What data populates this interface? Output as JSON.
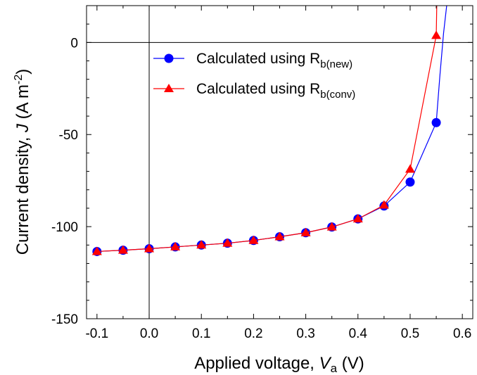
{
  "chart_data": {
    "type": "line",
    "title": "",
    "xlabel": {
      "prefix": "Applied voltage,  ",
      "symbol": "V",
      "subscript": "a",
      "suffix": " (V)"
    },
    "ylabel": {
      "prefix": "Current density,  ",
      "symbol": "J",
      "suffix_start": "  (A m",
      "superscript": "-2",
      "suffix_end": ")"
    },
    "xlim": [
      -0.12,
      0.62
    ],
    "ylim": [
      -150,
      20
    ],
    "x_ticks": [
      -0.1,
      0.0,
      0.1,
      0.2,
      0.3,
      0.4,
      0.5,
      0.6
    ],
    "x_tick_labels": [
      "-0.1",
      "0.0",
      "0.1",
      "0.2",
      "0.3",
      "0.4",
      "0.5",
      "0.6"
    ],
    "y_ticks": [
      0,
      -50,
      -100,
      -150
    ],
    "y_tick_labels": [
      "0",
      "-50",
      "-100",
      "-150"
    ],
    "reference_lines": {
      "x": 0,
      "y": 0
    },
    "grid": false,
    "legend_position": "top-right",
    "series": [
      {
        "label_prefix": "Calculated using R",
        "label_subscript": "b(new)",
        "color": "#0000ff",
        "marker": "circle",
        "x": [
          -0.1,
          -0.05,
          0.0,
          0.05,
          0.1,
          0.15,
          0.2,
          0.25,
          0.3,
          0.35,
          0.4,
          0.45,
          0.5,
          0.55
        ],
        "y": [
          -113.5,
          -112.8,
          -112.0,
          -111.0,
          -110.0,
          -109.0,
          -107.5,
          -105.5,
          -103.3,
          -100.2,
          -95.8,
          -88.8,
          -75.8,
          -43.5
        ],
        "line_extension": {
          "x": [
            0.55,
            0.557,
            0.564,
            0.57
          ],
          "y": [
            -43.5,
            -18.0,
            5.0,
            20.0
          ]
        }
      },
      {
        "label_prefix": "Calculated using R",
        "label_subscript": "b(conv)",
        "color": "#ff0000",
        "marker": "triangle",
        "x": [
          -0.1,
          -0.05,
          0.0,
          0.05,
          0.1,
          0.15,
          0.2,
          0.25,
          0.3,
          0.35,
          0.4,
          0.45,
          0.5,
          0.55
        ],
        "y": [
          -113.5,
          -112.8,
          -112.0,
          -111.0,
          -110.0,
          -109.0,
          -107.5,
          -105.5,
          -103.3,
          -100.2,
          -95.8,
          -88.3,
          -68.8,
          3.8
        ],
        "line_extension": {
          "x": [
            0.55,
            0.551
          ],
          "y": [
            3.8,
            20.0
          ]
        }
      }
    ]
  }
}
